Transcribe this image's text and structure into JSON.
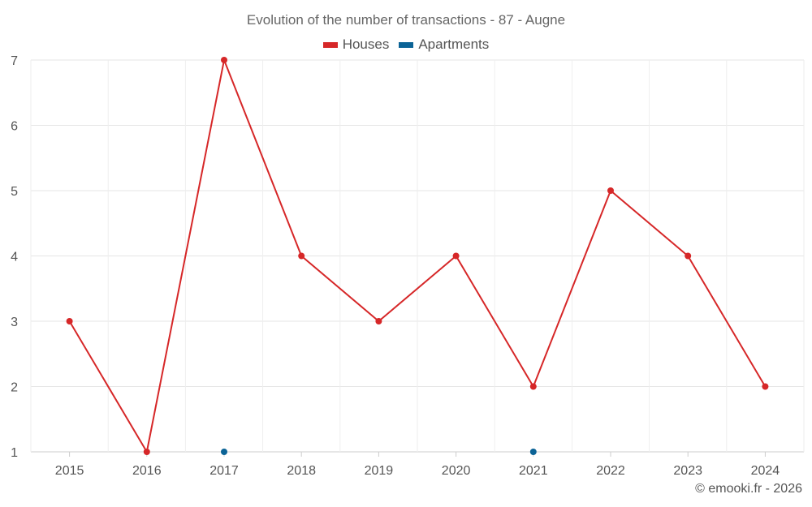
{
  "chart_data": {
    "type": "line",
    "title": "Evolution of the number of transactions - 87 - Augne",
    "categories": [
      "2015",
      "2016",
      "2017",
      "2018",
      "2019",
      "2020",
      "2021",
      "2022",
      "2023",
      "2024"
    ],
    "series": [
      {
        "name": "Houses",
        "color": "#d62728",
        "values": [
          3,
          1,
          7,
          4,
          3,
          4,
          2,
          5,
          4,
          2
        ]
      },
      {
        "name": "Apartments",
        "color": "#0b6396",
        "values": [
          null,
          null,
          1,
          null,
          null,
          null,
          1,
          null,
          null,
          null
        ]
      }
    ],
    "yticks": [
      "1",
      "2",
      "3",
      "4",
      "5",
      "6",
      "7"
    ],
    "ylim": [
      1,
      7
    ],
    "grid": true,
    "legend_position": "top-center",
    "xlabel": "",
    "ylabel": ""
  },
  "credit": "© emooki.fr - 2026"
}
